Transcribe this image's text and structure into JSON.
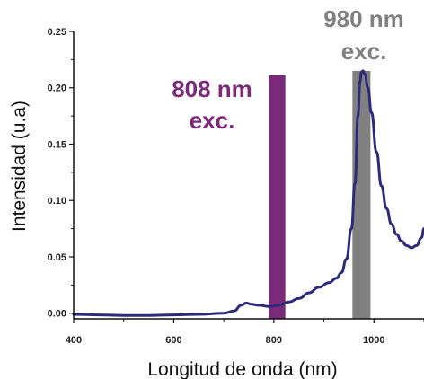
{
  "chart_data": {
    "type": "line",
    "xlabel": "Longitud de onda (nm)",
    "ylabel": "Intensidad (u.a)",
    "xlim": [
      400,
      1100
    ],
    "ylim": [
      -0.005,
      0.25
    ],
    "x_ticks": [
      "400",
      "600",
      "800",
      "1000"
    ],
    "y_ticks": [
      "0.00",
      "0.05",
      "0.10",
      "0.15",
      "0.20",
      "0.25"
    ],
    "grid": false,
    "series": [
      {
        "color": "#2e2a7a",
        "x": [
          400,
          450,
          500,
          550,
          600,
          650,
          700,
          720,
          735,
          745,
          755,
          770,
          790,
          810,
          830,
          850,
          870,
          890,
          910,
          925,
          935,
          945,
          955,
          962,
          968,
          972,
          975,
          978,
          982,
          988,
          995,
          1005,
          1015,
          1025,
          1035,
          1045,
          1055,
          1065,
          1075,
          1085,
          1095,
          1100
        ],
        "y": [
          -0.001,
          -0.0015,
          -0.002,
          -0.002,
          -0.0015,
          -0.001,
          0.0,
          0.002,
          0.007,
          0.009,
          0.008,
          0.007,
          0.006,
          0.007,
          0.01,
          0.013,
          0.018,
          0.023,
          0.027,
          0.031,
          0.036,
          0.048,
          0.075,
          0.115,
          0.175,
          0.205,
          0.214,
          0.215,
          0.212,
          0.2,
          0.178,
          0.143,
          0.113,
          0.093,
          0.079,
          0.07,
          0.064,
          0.06,
          0.058,
          0.06,
          0.067,
          0.075
        ]
      }
    ],
    "bands": [
      {
        "label_line1": "808 nm",
        "label_line2": "exc.",
        "x_from": 790,
        "x_to": 823,
        "y_top": 0.211,
        "color": "#7b2a7a"
      },
      {
        "label_line1": "980 nm",
        "label_line2": "exc.",
        "x_from": 957,
        "x_to": 993,
        "y_top": 0.215,
        "color": "#808080"
      }
    ]
  },
  "colors": {
    "axis": "#111111",
    "band_808_text": "#7b2a7a",
    "band_980_text": "#808080"
  }
}
